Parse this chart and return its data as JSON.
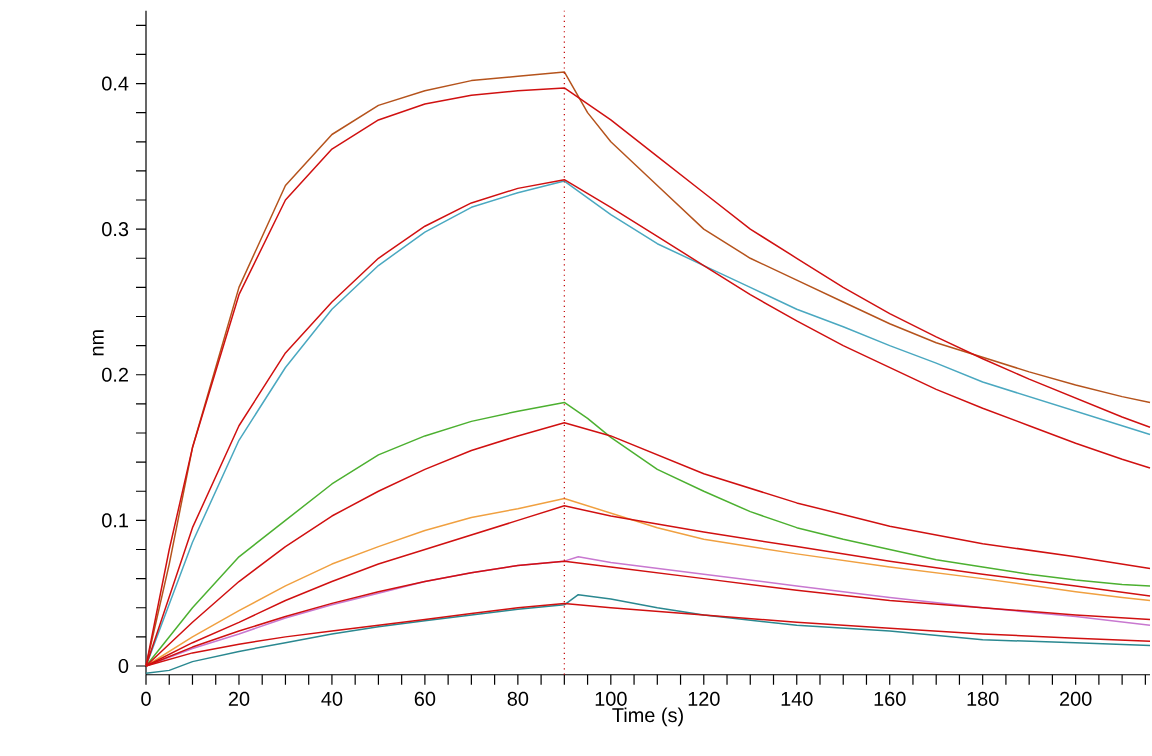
{
  "chart_data": {
    "type": "line",
    "xlabel": "Time (s)",
    "ylabel": "nm",
    "xlim": [
      0,
      216
    ],
    "ylim": [
      -0.006,
      0.45
    ],
    "xticks": [
      0,
      {
        "value": 5,
        "label": null
      },
      {
        "value": 10,
        "label": null
      },
      {
        "value": 15,
        "label": null
      },
      20,
      {
        "value": 25,
        "label": null
      },
      {
        "value": 30,
        "label": null
      },
      {
        "value": 35,
        "label": null
      },
      40,
      {
        "value": 45,
        "label": null
      },
      {
        "value": 50,
        "label": null
      },
      {
        "value": 55,
        "label": null
      },
      60,
      {
        "value": 65,
        "label": null
      },
      {
        "value": 70,
        "label": null
      },
      {
        "value": 75,
        "label": null
      },
      80,
      {
        "value": 85,
        "label": null
      },
      {
        "value": 90,
        "label": null
      },
      {
        "value": 95,
        "label": null
      },
      100,
      {
        "value": 105,
        "label": null
      },
      {
        "value": 110,
        "label": null
      },
      {
        "value": 115,
        "label": null
      },
      120,
      {
        "value": 125,
        "label": null
      },
      {
        "value": 130,
        "label": null
      },
      {
        "value": 135,
        "label": null
      },
      140,
      {
        "value": 145,
        "label": null
      },
      {
        "value": 150,
        "label": null
      },
      {
        "value": 155,
        "label": null
      },
      160,
      {
        "value": 165,
        "label": null
      },
      {
        "value": 170,
        "label": null
      },
      {
        "value": 175,
        "label": null
      },
      180,
      {
        "value": 185,
        "label": null
      },
      {
        "value": 190,
        "label": null
      },
      {
        "value": 195,
        "label": null
      },
      200,
      {
        "value": 205,
        "label": null
      },
      {
        "value": 210,
        "label": null
      },
      {
        "value": 215,
        "label": null
      }
    ],
    "yticks": [
      0,
      {
        "value": 0.02,
        "label": null
      },
      {
        "value": 0.04,
        "label": null
      },
      {
        "value": 0.06,
        "label": null
      },
      {
        "value": 0.08,
        "label": null
      },
      0.1,
      {
        "value": 0.12,
        "label": null
      },
      {
        "value": 0.14,
        "label": null
      },
      {
        "value": 0.16,
        "label": null
      },
      {
        "value": 0.18,
        "label": null
      },
      0.2,
      {
        "value": 0.22,
        "label": null
      },
      {
        "value": 0.24,
        "label": null
      },
      {
        "value": 0.26,
        "label": null
      },
      {
        "value": 0.28,
        "label": null
      },
      0.3,
      {
        "value": 0.32,
        "label": null
      },
      {
        "value": 0.34,
        "label": null
      },
      {
        "value": 0.36,
        "label": null
      },
      {
        "value": 0.38,
        "label": null
      },
      0.4,
      {
        "value": 0.42,
        "label": null
      },
      {
        "value": 0.44,
        "label": null
      }
    ],
    "ref_lines": [
      {
        "axis": "x",
        "value": 90,
        "color": "#c00000",
        "line_style": "dotted"
      }
    ],
    "series": [
      {
        "color": "#b5531c",
        "x": [
          0,
          5,
          10,
          20,
          30,
          40,
          50,
          60,
          70,
          80,
          90,
          95,
          100,
          110,
          120,
          130,
          140,
          150,
          160,
          170,
          180,
          190,
          200,
          210,
          216
        ],
        "values": [
          0,
          0.07,
          0.15,
          0.26,
          0.33,
          0.365,
          0.385,
          0.395,
          0.402,
          0.405,
          0.408,
          0.38,
          0.36,
          0.33,
          0.3,
          0.28,
          0.265,
          0.25,
          0.235,
          0.222,
          0.212,
          0.202,
          0.193,
          0.185,
          0.181
        ]
      },
      {
        "color": "#4aa8c0",
        "x": [
          0,
          10,
          20,
          30,
          40,
          50,
          60,
          70,
          80,
          90,
          100,
          110,
          120,
          130,
          140,
          150,
          160,
          170,
          180,
          190,
          200,
          210,
          216
        ],
        "values": [
          0,
          0.085,
          0.155,
          0.205,
          0.245,
          0.275,
          0.298,
          0.315,
          0.325,
          0.333,
          0.31,
          0.29,
          0.275,
          0.26,
          0.245,
          0.233,
          0.22,
          0.208,
          0.195,
          0.185,
          0.175,
          0.165,
          0.159
        ]
      },
      {
        "color": "#4cb030",
        "x": [
          0,
          10,
          20,
          30,
          40,
          50,
          60,
          70,
          80,
          90,
          95,
          100,
          110,
          120,
          130,
          140,
          150,
          160,
          170,
          180,
          190,
          200,
          210,
          216
        ],
        "values": [
          0,
          0.04,
          0.075,
          0.1,
          0.125,
          0.145,
          0.158,
          0.168,
          0.175,
          0.181,
          0.17,
          0.157,
          0.135,
          0.12,
          0.106,
          0.095,
          0.087,
          0.08,
          0.073,
          0.068,
          0.063,
          0.059,
          0.056,
          0.055
        ]
      },
      {
        "color": "#f0a040",
        "x": [
          0,
          10,
          20,
          30,
          40,
          50,
          60,
          70,
          80,
          90,
          100,
          110,
          120,
          140,
          160,
          180,
          200,
          210,
          216
        ],
        "values": [
          0,
          0.02,
          0.038,
          0.055,
          0.07,
          0.082,
          0.093,
          0.102,
          0.108,
          0.115,
          0.105,
          0.095,
          0.087,
          0.077,
          0.068,
          0.06,
          0.051,
          0.047,
          0.045
        ]
      },
      {
        "color": "#c878d0",
        "x": [
          0,
          10,
          20,
          30,
          40,
          50,
          60,
          70,
          80,
          90,
          93,
          100,
          120,
          140,
          160,
          180,
          200,
          216
        ],
        "values": [
          0,
          0.012,
          0.022,
          0.033,
          0.042,
          0.05,
          0.058,
          0.064,
          0.069,
          0.072,
          0.075,
          0.071,
          0.063,
          0.055,
          0.047,
          0.04,
          0.034,
          0.028
        ]
      },
      {
        "color": "#2a8890",
        "x": [
          0,
          5,
          10,
          20,
          30,
          40,
          50,
          60,
          70,
          80,
          90,
          93,
          100,
          110,
          120,
          140,
          160,
          180,
          200,
          216
        ],
        "values": [
          -0.005,
          -0.003,
          0.003,
          0.01,
          0.016,
          0.022,
          0.027,
          0.031,
          0.035,
          0.039,
          0.042,
          0.049,
          0.046,
          0.04,
          0.035,
          0.028,
          0.024,
          0.018,
          0.016,
          0.014
        ]
      },
      {
        "color": "#d01010",
        "x": [
          0,
          5,
          10,
          20,
          30,
          40,
          50,
          60,
          70,
          80,
          90,
          100,
          110,
          120,
          130,
          140,
          150,
          160,
          170,
          180,
          190,
          200,
          210,
          216
        ],
        "values": [
          0,
          0.08,
          0.15,
          0.255,
          0.32,
          0.355,
          0.375,
          0.386,
          0.392,
          0.395,
          0.397,
          0.375,
          0.35,
          0.325,
          0.3,
          0.28,
          0.26,
          0.242,
          0.226,
          0.211,
          0.197,
          0.184,
          0.171,
          0.164
        ]
      },
      {
        "color": "#d01010",
        "x": [
          0,
          10,
          20,
          30,
          40,
          50,
          60,
          70,
          80,
          90,
          100,
          110,
          120,
          130,
          140,
          150,
          160,
          170,
          180,
          190,
          200,
          210,
          216
        ],
        "values": [
          0,
          0.095,
          0.165,
          0.215,
          0.25,
          0.28,
          0.302,
          0.318,
          0.328,
          0.334,
          0.315,
          0.295,
          0.275,
          0.255,
          0.237,
          0.22,
          0.205,
          0.19,
          0.177,
          0.165,
          0.153,
          0.142,
          0.136
        ]
      },
      {
        "color": "#d01010",
        "x": [
          0,
          10,
          20,
          30,
          40,
          50,
          60,
          70,
          80,
          90,
          100,
          120,
          140,
          160,
          180,
          200,
          216
        ],
        "values": [
          0,
          0.03,
          0.058,
          0.082,
          0.103,
          0.12,
          0.135,
          0.148,
          0.158,
          0.167,
          0.158,
          0.132,
          0.112,
          0.096,
          0.084,
          0.075,
          0.067
        ]
      },
      {
        "color": "#d01010",
        "x": [
          0,
          10,
          20,
          30,
          40,
          50,
          60,
          70,
          80,
          90,
          100,
          120,
          140,
          160,
          180,
          200,
          216
        ],
        "values": [
          0,
          0.016,
          0.03,
          0.045,
          0.058,
          0.07,
          0.08,
          0.09,
          0.1,
          0.11,
          0.103,
          0.092,
          0.082,
          0.072,
          0.063,
          0.055,
          0.048
        ]
      },
      {
        "color": "#d01010",
        "x": [
          0,
          10,
          20,
          30,
          40,
          50,
          60,
          70,
          80,
          90,
          100,
          120,
          140,
          160,
          180,
          200,
          216
        ],
        "values": [
          0,
          0.013,
          0.024,
          0.034,
          0.043,
          0.051,
          0.058,
          0.064,
          0.069,
          0.072,
          0.068,
          0.06,
          0.052,
          0.045,
          0.04,
          0.035,
          0.032
        ]
      },
      {
        "color": "#d01010",
        "x": [
          0,
          10,
          20,
          30,
          40,
          50,
          60,
          70,
          80,
          90,
          100,
          120,
          140,
          160,
          180,
          200,
          216
        ],
        "values": [
          0,
          0.009,
          0.015,
          0.02,
          0.024,
          0.028,
          0.032,
          0.036,
          0.04,
          0.043,
          0.04,
          0.035,
          0.03,
          0.026,
          0.022,
          0.019,
          0.017
        ]
      }
    ]
  }
}
